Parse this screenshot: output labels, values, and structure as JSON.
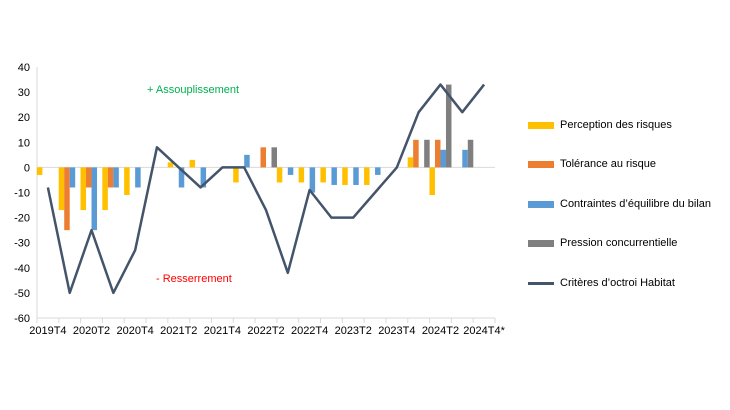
{
  "chart_data": {
    "type": "bar",
    "categories": [
      "2019T4",
      "",
      "2020T2",
      "",
      "2020T4",
      "",
      "2021T2",
      "",
      "2021T4",
      "",
      "2022T2",
      "",
      "2022T4",
      "",
      "2023T2",
      "",
      "2023T4",
      "",
      "2024T2",
      "",
      "2024T4*"
    ],
    "ylim": [
      -60,
      40
    ],
    "yticks": [
      -60,
      -50,
      -40,
      -30,
      -20,
      -10,
      0,
      10,
      20,
      30,
      40
    ],
    "series": [
      {
        "name": "Perception des risques",
        "kind": "bar",
        "color": "#FFC000",
        "values": [
          -3,
          -17,
          -17,
          -17,
          -11,
          0,
          2,
          3,
          0,
          -6,
          0,
          -6,
          -6,
          -6,
          -7,
          -7,
          0,
          4,
          -11,
          0,
          0
        ]
      },
      {
        "name": "Tolérance au risque",
        "kind": "bar",
        "color": "#ED7D31",
        "values": [
          0,
          -25,
          -8,
          -8,
          0,
          0,
          0,
          0,
          0,
          0,
          8,
          0,
          0,
          0,
          0,
          0,
          0,
          11,
          11,
          0,
          0
        ]
      },
      {
        "name": "Contraintes d’équilibre du bilan",
        "kind": "bar",
        "color": "#5B9BD5",
        "values": [
          0,
          -8,
          -25,
          -8,
          -8,
          0,
          -8,
          -8,
          0,
          5,
          0,
          -3,
          -10,
          -7,
          -7,
          -3,
          0,
          0,
          7,
          7,
          0
        ]
      },
      {
        "name": "Pression concurrentielle",
        "kind": "bar",
        "color": "#7F7F7F",
        "values": [
          0,
          0,
          0,
          0,
          0,
          0,
          0,
          0,
          0,
          0,
          8,
          0,
          0,
          0,
          0,
          0,
          0,
          11,
          33,
          11,
          0
        ]
      },
      {
        "name": "Critères d’octroi Habitat",
        "kind": "line",
        "color": "#44546A",
        "values": [
          -8,
          -50,
          -25,
          -50,
          -33,
          8,
          0,
          -8,
          0,
          0,
          -17,
          -42,
          -9,
          -20,
          -20,
          -10,
          0,
          22,
          33,
          22,
          33
        ]
      }
    ],
    "annotations": {
      "easing": "+ Assouplissement",
      "tightening": "- Resserrement"
    },
    "annotation_colors": {
      "easing": "#00B050",
      "tightening": "#FF0000"
    },
    "grid": false,
    "legend_position": "right"
  }
}
